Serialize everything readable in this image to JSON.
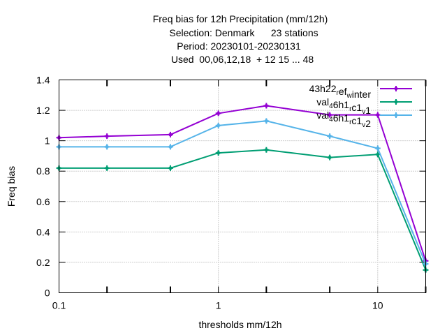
{
  "chart_data": {
    "type": "line",
    "title_lines": [
      "Freq bias  for 12h Precipitation (mm/12h)",
      "Selection: Denmark      23 stations",
      "Period: 20230101-20230131",
      "Used  00,06,12,18  + 12 15 ... 48"
    ],
    "xlabel": "thresholds mm/12h",
    "ylabel": "Freq bias",
    "x_scale": "log",
    "xlim": [
      0.1,
      20
    ],
    "ylim": [
      0,
      1.4
    ],
    "x_ticks": [
      {
        "value": 0.1,
        "label": "0.1"
      },
      {
        "value": 1,
        "label": "1"
      },
      {
        "value": 10,
        "label": "10"
      }
    ],
    "x_minor_ticks": [
      0.2,
      0.5,
      2,
      5,
      20
    ],
    "y_ticks": [
      {
        "value": 0,
        "label": "0"
      },
      {
        "value": 0.2,
        "label": "0.2"
      },
      {
        "value": 0.4,
        "label": "0.4"
      },
      {
        "value": 0.6,
        "label": "0.6"
      },
      {
        "value": 0.8,
        "label": "0.8"
      },
      {
        "value": 1,
        "label": "1"
      },
      {
        "value": 1.2,
        "label": "1.2"
      },
      {
        "value": 1.4,
        "label": "1.4"
      }
    ],
    "grid": true,
    "legend_position": "top-right",
    "x": [
      0.1,
      0.2,
      0.5,
      1,
      2,
      5,
      10,
      20
    ],
    "series": [
      {
        "name": "43h22_ref_winter",
        "legend": {
          "parts": [
            [
              "43h22",
              ""
            ],
            [
              "r",
              "sub"
            ],
            [
              "ef",
              ""
            ],
            [
              "w",
              "sub"
            ],
            [
              "inter",
              ""
            ]
          ]
        },
        "color": "#9400d3",
        "values": [
          1.02,
          1.03,
          1.04,
          1.18,
          1.23,
          1.17,
          1.17,
          0.21
        ]
      },
      {
        "name": "val_46h1_rc1_v1",
        "legend": {
          "parts": [
            [
              "val",
              ""
            ],
            [
              "4",
              "sub"
            ],
            [
              "6h1",
              ""
            ],
            [
              "r",
              "sub"
            ],
            [
              "c1",
              ""
            ],
            [
              "v",
              "sub"
            ],
            [
              "1",
              ""
            ]
          ]
        },
        "color": "#009e73",
        "values": [
          0.82,
          0.82,
          0.82,
          0.92,
          0.94,
          0.89,
          0.91,
          0.15
        ]
      },
      {
        "name": "val_46h1_rc1_v2",
        "legend": {
          "parts": [
            [
              "val",
              ""
            ],
            [
              "4",
              "sub"
            ],
            [
              "6h1",
              ""
            ],
            [
              "r",
              "sub"
            ],
            [
              "c1",
              ""
            ],
            [
              "v",
              "sub"
            ],
            [
              "2",
              ""
            ]
          ]
        },
        "color": "#56b4e9",
        "values": [
          0.96,
          0.96,
          0.96,
          1.1,
          1.13,
          1.03,
          0.95,
          0.19
        ]
      }
    ]
  }
}
